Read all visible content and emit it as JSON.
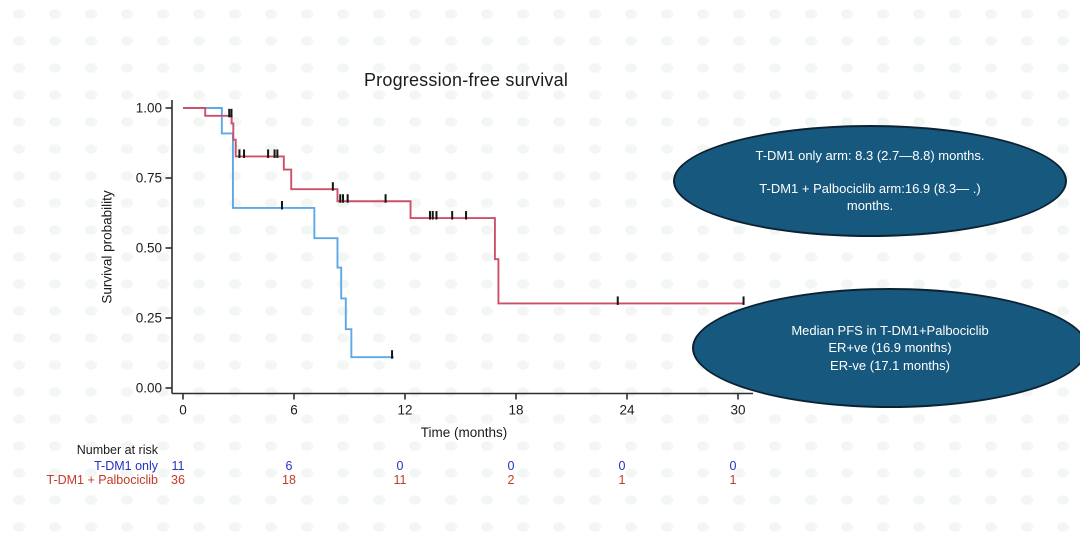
{
  "chart_data": {
    "type": "line",
    "subtype": "kaplan-meier-step",
    "title": "Progression-free survival",
    "xlabel": "Time (months)",
    "ylabel": "Survival probability",
    "xlim": [
      0,
      31
    ],
    "ylim": [
      0,
      1
    ],
    "grid": false,
    "legend_position": "none",
    "xticks": [
      {
        "value": 0,
        "label": "0"
      },
      {
        "value": 6,
        "label": "6"
      },
      {
        "value": 12,
        "label": "12"
      },
      {
        "value": 18,
        "label": "18"
      },
      {
        "value": 24,
        "label": "24"
      },
      {
        "value": 30,
        "label": "30"
      }
    ],
    "yticks": [
      {
        "value": 0.0,
        "label": "0.00"
      },
      {
        "value": 0.25,
        "label": "0.25"
      },
      {
        "value": 0.5,
        "label": "0.50"
      },
      {
        "value": 0.75,
        "label": "0.75"
      },
      {
        "value": 1.0,
        "label": "1.00"
      }
    ],
    "series": [
      {
        "name": "T-DM1 only",
        "color": "#5DA9E8",
        "steps": [
          [
            0,
            1.0
          ],
          [
            2.1,
            0.909
          ],
          [
            2.7,
            0.643
          ],
          [
            7.1,
            0.535
          ],
          [
            8.35,
            0.43
          ],
          [
            8.55,
            0.32
          ],
          [
            8.8,
            0.21
          ],
          [
            9.1,
            0.11
          ]
        ],
        "end_time": 11.4,
        "censor_marks": [
          [
            5.35,
            0.643
          ],
          [
            11.3,
            0.11
          ]
        ]
      },
      {
        "name": "T-DM1 + Palbociclib",
        "color": "#CB5068",
        "steps": [
          [
            0,
            1.0
          ],
          [
            1.2,
            0.972
          ],
          [
            2.63,
            0.945
          ],
          [
            2.72,
            0.887
          ],
          [
            2.85,
            0.827
          ],
          [
            5.45,
            0.78
          ],
          [
            5.85,
            0.71
          ],
          [
            8.35,
            0.667
          ],
          [
            12.3,
            0.607
          ],
          [
            16.86,
            0.46
          ],
          [
            17.05,
            0.302
          ]
        ],
        "end_time": 30.35,
        "censor_marks": [
          [
            2.5,
            0.972
          ],
          [
            2.62,
            0.972
          ],
          [
            3.05,
            0.827
          ],
          [
            3.3,
            0.827
          ],
          [
            4.6,
            0.827
          ],
          [
            4.95,
            0.827
          ],
          [
            5.1,
            0.827
          ],
          [
            8.1,
            0.71
          ],
          [
            8.5,
            0.667
          ],
          [
            8.65,
            0.667
          ],
          [
            8.9,
            0.667
          ],
          [
            10.95,
            0.667
          ],
          [
            13.35,
            0.607
          ],
          [
            13.5,
            0.607
          ],
          [
            13.7,
            0.607
          ],
          [
            14.55,
            0.607
          ],
          [
            15.3,
            0.607
          ],
          [
            23.5,
            0.302
          ],
          [
            30.3,
            0.302
          ]
        ]
      }
    ]
  },
  "annotations": [
    {
      "id": "median-pfs-by-arm",
      "fill": "#16587E",
      "text_color": "#FFFFFF",
      "lines": [
        "T-DM1 only arm: 8.3 (2.7—8.8) months.",
        "",
        "T-DM1 + Palbociclib arm:16.9 (8.3—  .)",
        "months."
      ]
    },
    {
      "id": "median-pfs-by-er-status",
      "fill": "#16587E",
      "text_color": "#FFFFFF",
      "lines": [
        "Median PFS in T-DM1+Palbociclib",
        "ER+ve (16.9 months)",
        "ER-ve (17.1 months)"
      ]
    }
  ],
  "risk_table": {
    "header": "Number at risk",
    "times": [
      0,
      6,
      12,
      18,
      24,
      30
    ],
    "rows": [
      {
        "label": "T-DM1 only",
        "color": "#2431C8",
        "values": [
          "11",
          "6",
          "0",
          "0",
          "0",
          "0"
        ]
      },
      {
        "label": "T-DM1 + Palbociclib",
        "color": "#C43A28",
        "values": [
          "36",
          "18",
          "11",
          "2",
          "1",
          "1"
        ]
      }
    ]
  },
  "colors": {
    "background": "#FFFFFF",
    "axis": "#2E2E2E",
    "censor_mark": "#151515",
    "curve_tdm1_only": "#5DA9E8",
    "curve_tdm1_palbociclib": "#CB5068",
    "risk_label_tdm1_only": "#2431C8",
    "risk_label_tdm1_palbociclib": "#C43A28",
    "annotation_fill": "#16587E"
  }
}
